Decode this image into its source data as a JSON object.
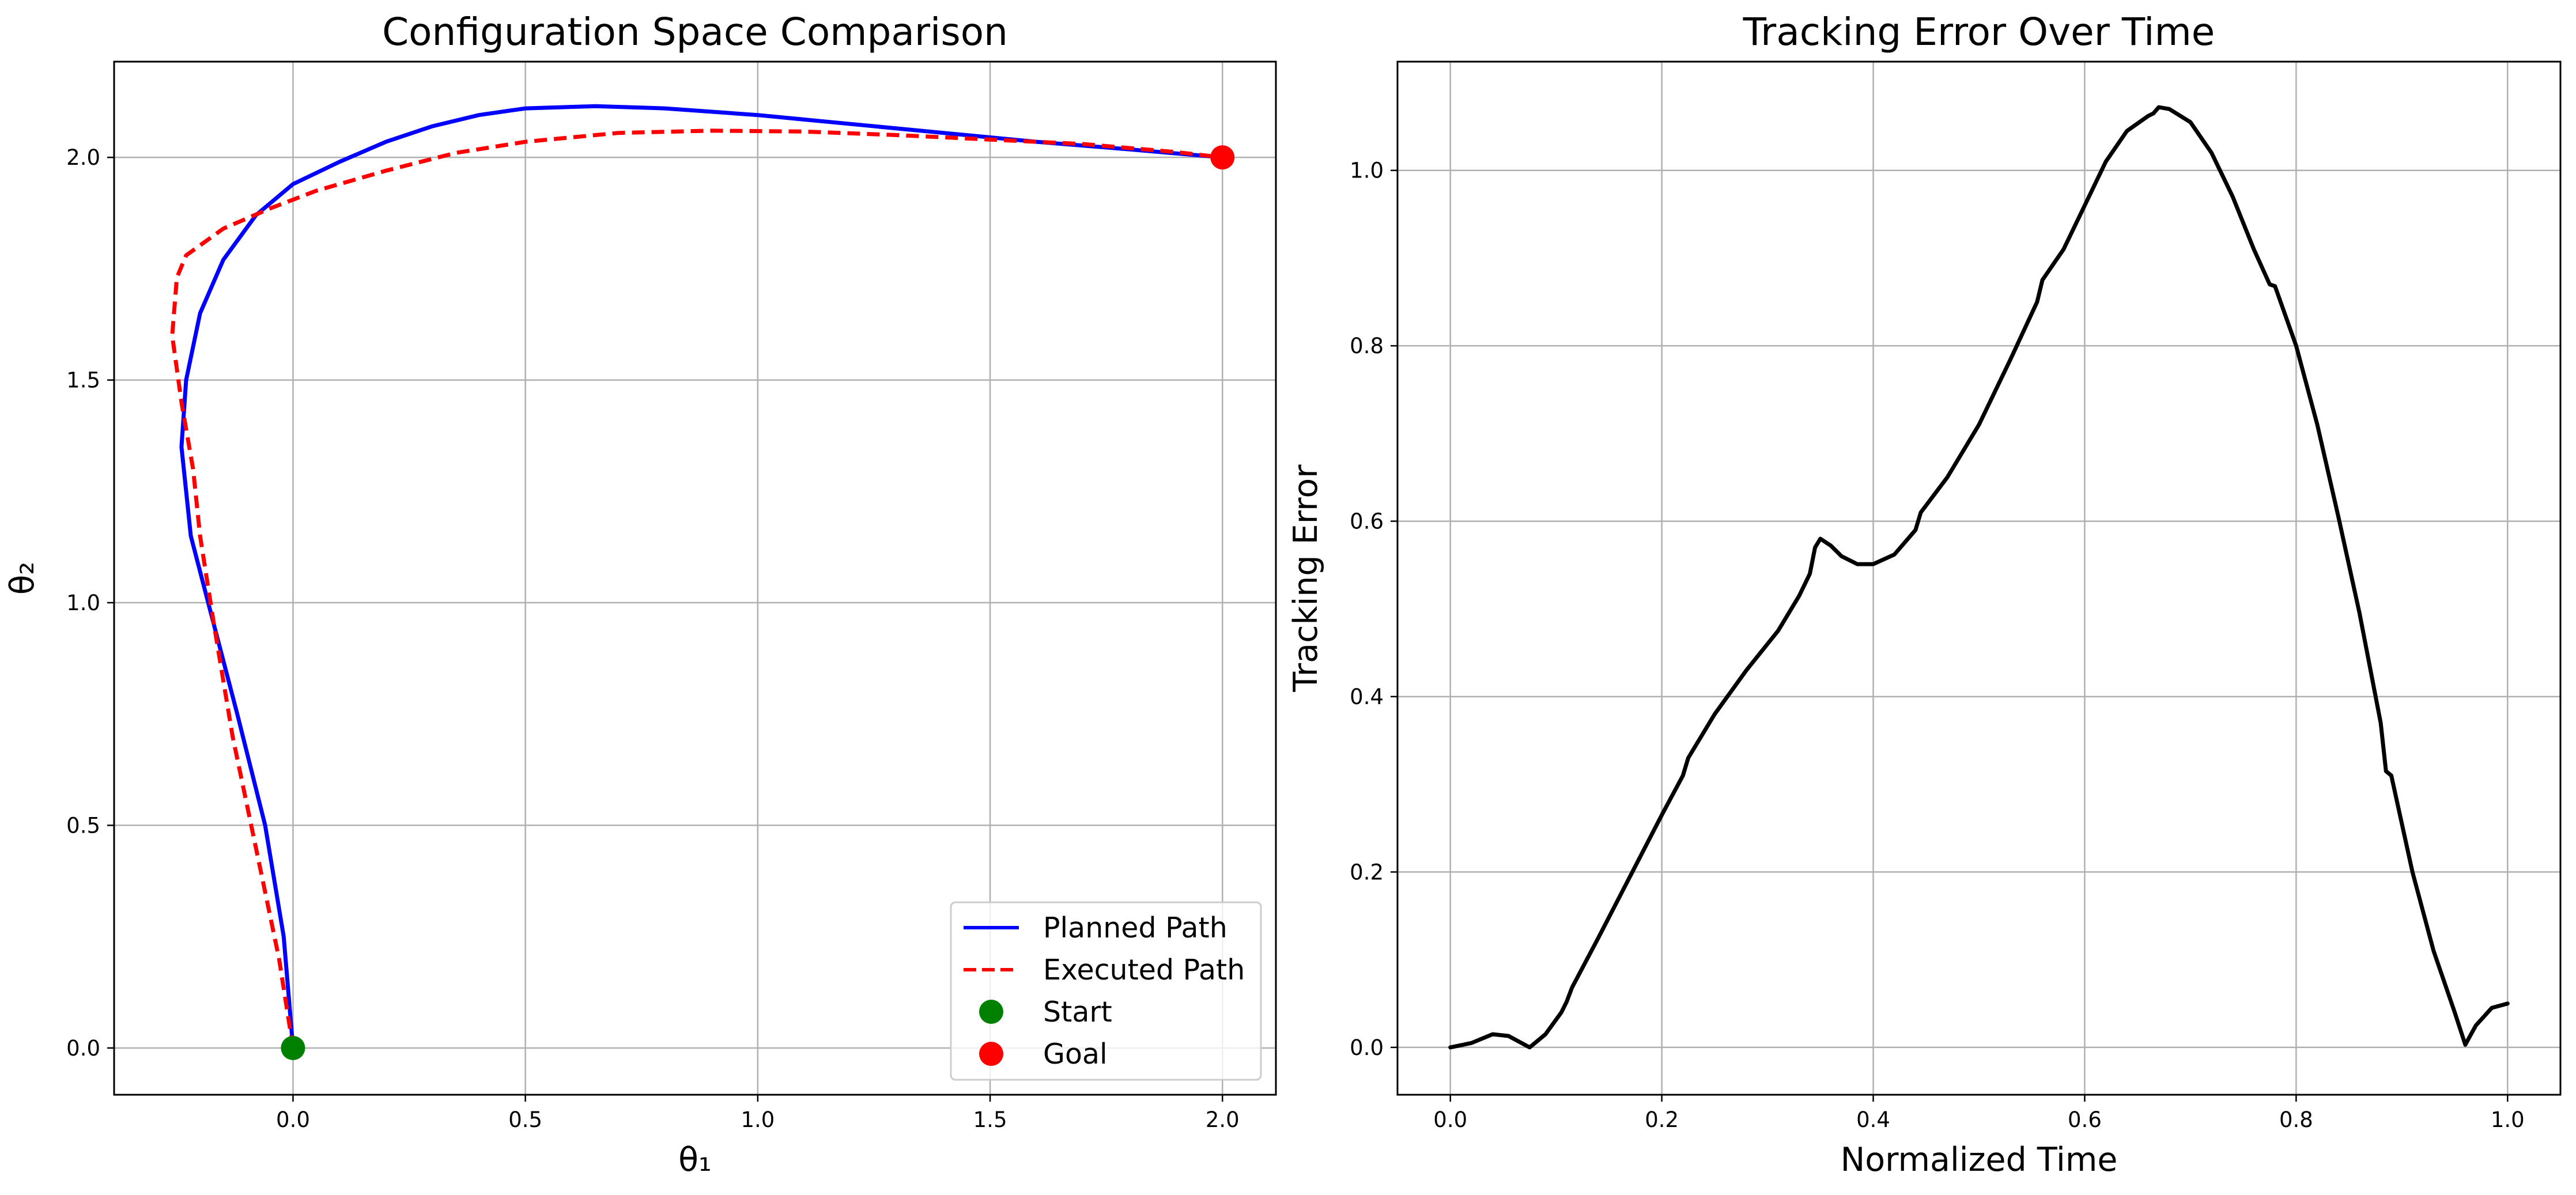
{
  "chart_data": [
    {
      "type": "line",
      "title": "Configuration Space Comparison",
      "xlabel": "θ₁",
      "ylabel": "θ₂",
      "xlim": [
        -0.385,
        2.115
      ],
      "ylim": [
        -0.105,
        2.215
      ],
      "xticks": [
        0.0,
        0.5,
        1.0,
        1.5,
        2.0
      ],
      "yticks": [
        0.0,
        0.5,
        1.0,
        1.5,
        2.0
      ],
      "xtick_labels": [
        "0.0",
        "0.5",
        "1.0",
        "1.5",
        "2.0"
      ],
      "ytick_labels": [
        "0.0",
        "0.5",
        "1.0",
        "1.5",
        "2.0"
      ],
      "grid": true,
      "legend_position": "lower-right",
      "series": [
        {
          "name": "Planned Path",
          "style": "solid",
          "color": "#0000ff",
          "points": [
            [
              0.0,
              0.0
            ],
            [
              -0.02,
              0.25
            ],
            [
              -0.06,
              0.5
            ],
            [
              -0.12,
              0.75
            ],
            [
              -0.175,
              0.97
            ],
            [
              -0.22,
              1.15
            ],
            [
              -0.24,
              1.35
            ],
            [
              -0.23,
              1.5
            ],
            [
              -0.2,
              1.65
            ],
            [
              -0.15,
              1.77
            ],
            [
              -0.08,
              1.87
            ],
            [
              0.0,
              1.94
            ],
            [
              0.1,
              1.99
            ],
            [
              0.2,
              2.035
            ],
            [
              0.3,
              2.07
            ],
            [
              0.4,
              2.095
            ],
            [
              0.5,
              2.11
            ],
            [
              0.65,
              2.115
            ],
            [
              0.8,
              2.11
            ],
            [
              1.0,
              2.095
            ],
            [
              1.2,
              2.075
            ],
            [
              1.4,
              2.055
            ],
            [
              1.6,
              2.035
            ],
            [
              1.8,
              2.018
            ],
            [
              2.0,
              2.0
            ]
          ]
        },
        {
          "name": "Executed Path",
          "style": "dashed",
          "color": "#ff0000",
          "points": [
            [
              0.0,
              0.0
            ],
            [
              -0.03,
              0.2
            ],
            [
              -0.08,
              0.45
            ],
            [
              -0.13,
              0.7
            ],
            [
              -0.17,
              0.95
            ],
            [
              -0.2,
              1.15
            ],
            [
              -0.215,
              1.3
            ],
            [
              -0.24,
              1.45
            ],
            [
              -0.26,
              1.6
            ],
            [
              -0.25,
              1.73
            ],
            [
              -0.23,
              1.78
            ],
            [
              -0.15,
              1.84
            ],
            [
              -0.05,
              1.885
            ],
            [
              0.05,
              1.925
            ],
            [
              0.2,
              1.97
            ],
            [
              0.35,
              2.01
            ],
            [
              0.5,
              2.035
            ],
            [
              0.7,
              2.055
            ],
            [
              0.9,
              2.06
            ],
            [
              1.1,
              2.058
            ],
            [
              1.3,
              2.05
            ],
            [
              1.5,
              2.04
            ],
            [
              1.7,
              2.03
            ],
            [
              1.9,
              2.012
            ],
            [
              2.0,
              2.0
            ]
          ]
        },
        {
          "name": "Start",
          "style": "marker",
          "color": "#008000",
          "points": [
            [
              0.0,
              0.0
            ]
          ]
        },
        {
          "name": "Goal",
          "style": "marker",
          "color": "#ff0000",
          "points": [
            [
              2.0,
              2.0
            ]
          ]
        }
      ]
    },
    {
      "type": "line",
      "title": "Tracking Error Over Time",
      "xlabel": "Normalized Time",
      "ylabel": "Tracking Error",
      "xlim": [
        -0.05,
        1.05
      ],
      "ylim": [
        -0.054,
        1.124
      ],
      "xticks": [
        0.0,
        0.2,
        0.4,
        0.6,
        0.8,
        1.0
      ],
      "yticks": [
        0.0,
        0.2,
        0.4,
        0.6,
        0.8,
        1.0
      ],
      "xtick_labels": [
        "0.0",
        "0.2",
        "0.4",
        "0.6",
        "0.8",
        "1.0"
      ],
      "ytick_labels": [
        "0.0",
        "0.2",
        "0.4",
        "0.6",
        "0.8",
        "1.0"
      ],
      "grid": true,
      "series": [
        {
          "style": "solid",
          "color": "#000000",
          "points": [
            [
              0.0,
              0.0
            ],
            [
              0.02,
              0.005
            ],
            [
              0.04,
              0.015
            ],
            [
              0.055,
              0.013
            ],
            [
              0.075,
              0.0
            ],
            [
              0.09,
              0.015
            ],
            [
              0.105,
              0.04
            ],
            [
              0.11,
              0.052
            ],
            [
              0.115,
              0.068
            ],
            [
              0.14,
              0.125
            ],
            [
              0.17,
              0.195
            ],
            [
              0.2,
              0.265
            ],
            [
              0.22,
              0.31
            ],
            [
              0.225,
              0.33
            ],
            [
              0.25,
              0.38
            ],
            [
              0.28,
              0.43
            ],
            [
              0.31,
              0.475
            ],
            [
              0.33,
              0.515
            ],
            [
              0.34,
              0.54
            ],
            [
              0.345,
              0.57
            ],
            [
              0.35,
              0.58
            ],
            [
              0.36,
              0.572
            ],
            [
              0.37,
              0.56
            ],
            [
              0.385,
              0.551
            ],
            [
              0.4,
              0.551
            ],
            [
              0.42,
              0.562
            ],
            [
              0.44,
              0.59
            ],
            [
              0.445,
              0.61
            ],
            [
              0.47,
              0.65
            ],
            [
              0.5,
              0.71
            ],
            [
              0.53,
              0.785
            ],
            [
              0.555,
              0.85
            ],
            [
              0.56,
              0.875
            ],
            [
              0.58,
              0.91
            ],
            [
              0.6,
              0.96
            ],
            [
              0.62,
              1.01
            ],
            [
              0.64,
              1.045
            ],
            [
              0.66,
              1.062
            ],
            [
              0.665,
              1.065
            ],
            [
              0.67,
              1.072
            ],
            [
              0.68,
              1.07
            ],
            [
              0.7,
              1.055
            ],
            [
              0.72,
              1.02
            ],
            [
              0.74,
              0.97
            ],
            [
              0.76,
              0.91
            ],
            [
              0.775,
              0.87
            ],
            [
              0.78,
              0.868
            ],
            [
              0.8,
              0.8
            ],
            [
              0.82,
              0.71
            ],
            [
              0.84,
              0.605
            ],
            [
              0.86,
              0.495
            ],
            [
              0.88,
              0.37
            ],
            [
              0.885,
              0.315
            ],
            [
              0.89,
              0.31
            ],
            [
              0.91,
              0.2
            ],
            [
              0.93,
              0.11
            ],
            [
              0.95,
              0.04
            ],
            [
              0.96,
              0.003
            ],
            [
              0.97,
              0.025
            ],
            [
              0.985,
              0.045
            ],
            [
              1.0,
              0.05
            ]
          ]
        }
      ]
    }
  ]
}
